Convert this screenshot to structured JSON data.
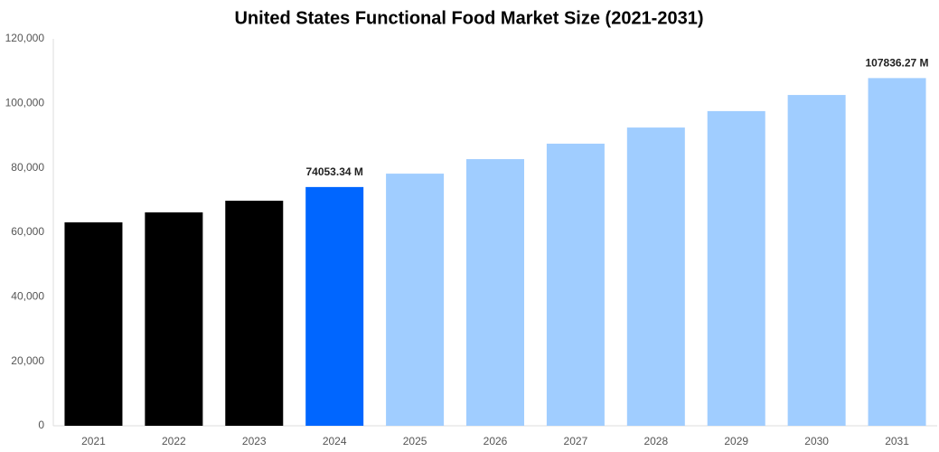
{
  "chart_data": {
    "type": "bar",
    "title": "United States Functional Food Market Size (2021-2031)",
    "categories": [
      "2021",
      "2022",
      "2023",
      "2024",
      "2025",
      "2026",
      "2027",
      "2028",
      "2029",
      "2030",
      "2031"
    ],
    "values": [
      63100,
      66200,
      69800,
      74053.34,
      78200,
      82700,
      87500,
      92500,
      97600,
      102600,
      107836.27
    ],
    "value_labels": [
      null,
      null,
      null,
      "74053.34 M",
      null,
      null,
      null,
      null,
      null,
      null,
      "107836.27 M"
    ],
    "colors": [
      "#000000",
      "#000000",
      "#000000",
      "#0066ff",
      "#a0cdff",
      "#a0cdff",
      "#a0cdff",
      "#a0cdff",
      "#a0cdff",
      "#a0cdff",
      "#a0cdff"
    ],
    "ylim": [
      0,
      120000
    ],
    "yticks": [
      0,
      {
        "value": 20000,
        "label": "20,000"
      },
      {
        "value": 40000,
        "label": "40,000"
      },
      {
        "value": 60000,
        "label": "60,000"
      },
      {
        "value": 80000,
        "label": "80,000"
      },
      {
        "value": 100000,
        "label": "100,000"
      },
      {
        "value": 120000,
        "label": "120,000"
      }
    ],
    "grid": false
  }
}
